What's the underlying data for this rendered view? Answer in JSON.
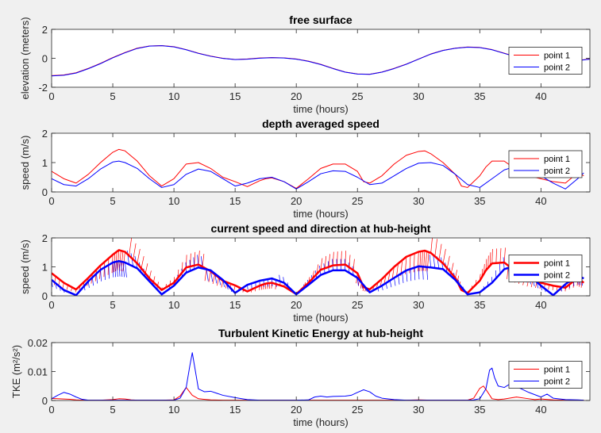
{
  "chart_data": [
    {
      "type": "line",
      "title": "free surface",
      "xlabel": "time (hours)",
      "ylabel": "elevation (meters)",
      "xlim": [
        0,
        44
      ],
      "ylim": [
        -2,
        2
      ],
      "xticks": [
        0,
        5,
        10,
        15,
        20,
        25,
        30,
        35,
        40
      ],
      "yticks": [
        -2,
        0,
        2
      ],
      "legend_position": "right",
      "series": [
        {
          "name": "point 1",
          "color": "#ff0000",
          "width": 1,
          "x": [
            0,
            1,
            2,
            3,
            4,
            5,
            6,
            7,
            8,
            9,
            10,
            11,
            12,
            13,
            14,
            15,
            16,
            17,
            18,
            19,
            20,
            21,
            22,
            23,
            24,
            25,
            26,
            27,
            28,
            29,
            30,
            31,
            32,
            33,
            34,
            35,
            36,
            37,
            38,
            39,
            40,
            41,
            42,
            43,
            44
          ],
          "y": [
            -1.2,
            -1.15,
            -1.0,
            -0.7,
            -0.35,
            0.05,
            0.4,
            0.7,
            0.85,
            0.88,
            0.8,
            0.6,
            0.35,
            0.15,
            0.0,
            -0.08,
            -0.05,
            0.02,
            0.05,
            0.03,
            -0.05,
            -0.2,
            -0.42,
            -0.7,
            -0.95,
            -1.08,
            -1.1,
            -0.95,
            -0.7,
            -0.4,
            -0.05,
            0.3,
            0.55,
            0.7,
            0.78,
            0.75,
            0.6,
            0.35,
            0.1,
            -0.1,
            -0.25,
            -0.3,
            -0.25,
            -0.15,
            -0.05
          ]
        },
        {
          "name": "point 2",
          "color": "#0000ff",
          "width": 1,
          "x": [
            0,
            1,
            2,
            3,
            4,
            5,
            6,
            7,
            8,
            9,
            10,
            11,
            12,
            13,
            14,
            15,
            16,
            17,
            18,
            19,
            20,
            21,
            22,
            23,
            24,
            25,
            26,
            27,
            28,
            29,
            30,
            31,
            32,
            33,
            34,
            35,
            36,
            37,
            38,
            39,
            40,
            41,
            42,
            43,
            44
          ],
          "y": [
            -1.22,
            -1.17,
            -1.02,
            -0.72,
            -0.37,
            0.03,
            0.38,
            0.68,
            0.84,
            0.87,
            0.79,
            0.59,
            0.34,
            0.14,
            -0.01,
            -0.09,
            -0.06,
            0.01,
            0.04,
            0.02,
            -0.06,
            -0.21,
            -0.43,
            -0.71,
            -0.96,
            -1.09,
            -1.11,
            -0.96,
            -0.71,
            -0.41,
            -0.06,
            0.29,
            0.54,
            0.69,
            0.77,
            0.74,
            0.59,
            0.34,
            0.09,
            -0.11,
            -0.26,
            -0.31,
            -0.26,
            -0.16,
            -0.06
          ]
        }
      ]
    },
    {
      "type": "line",
      "title": "depth averaged speed",
      "xlabel": "time (hours)",
      "ylabel": "speed (m/s)",
      "xlim": [
        0,
        44
      ],
      "ylim": [
        0,
        2
      ],
      "xticks": [
        0,
        5,
        10,
        15,
        20,
        25,
        30,
        35,
        40
      ],
      "yticks": [
        0,
        1,
        2
      ],
      "legend_position": "right",
      "series": [
        {
          "name": "point 1",
          "color": "#ff0000",
          "width": 1,
          "x": [
            0,
            1,
            2,
            3,
            4,
            5,
            5.5,
            6,
            7,
            8,
            9,
            10,
            11,
            12,
            13,
            14,
            15,
            16,
            17,
            17.5,
            18,
            19,
            20,
            21,
            22,
            23,
            24,
            25,
            25.5,
            26,
            27,
            28,
            29,
            30,
            30.5,
            31,
            32,
            33,
            33.5,
            34,
            35,
            35.5,
            36,
            37,
            38,
            39,
            40,
            41,
            42,
            43,
            43.5
          ],
          "y": [
            0.7,
            0.45,
            0.3,
            0.6,
            1.0,
            1.35,
            1.45,
            1.4,
            1.05,
            0.55,
            0.2,
            0.45,
            0.95,
            1.0,
            0.8,
            0.5,
            0.35,
            0.18,
            0.38,
            0.45,
            0.48,
            0.35,
            0.12,
            0.45,
            0.8,
            0.95,
            0.95,
            0.7,
            0.35,
            0.3,
            0.55,
            0.95,
            1.25,
            1.38,
            1.4,
            1.3,
            1.0,
            0.6,
            0.2,
            0.15,
            0.55,
            0.85,
            1.05,
            1.05,
            0.75,
            0.55,
            0.45,
            0.35,
            0.3,
            0.65,
            0.55
          ]
        },
        {
          "name": "point 2",
          "color": "#0000ff",
          "width": 1,
          "x": [
            0,
            1,
            2,
            3,
            4,
            5,
            5.5,
            6,
            7,
            8,
            9,
            10,
            11,
            12,
            13,
            14,
            15,
            16,
            17,
            18,
            19,
            20,
            21,
            22,
            23,
            24,
            25,
            26,
            27,
            28,
            29,
            30,
            31,
            32,
            33,
            34,
            35,
            36,
            37,
            38,
            39,
            40,
            41,
            42,
            43,
            43.5
          ],
          "y": [
            0.45,
            0.25,
            0.2,
            0.45,
            0.78,
            1.02,
            1.05,
            1.0,
            0.8,
            0.45,
            0.15,
            0.25,
            0.6,
            0.78,
            0.7,
            0.45,
            0.2,
            0.3,
            0.45,
            0.5,
            0.35,
            0.1,
            0.35,
            0.62,
            0.72,
            0.7,
            0.5,
            0.25,
            0.3,
            0.55,
            0.8,
            0.98,
            1.0,
            0.9,
            0.6,
            0.25,
            0.15,
            0.45,
            0.75,
            0.88,
            0.72,
            0.55,
            0.3,
            0.1,
            0.45,
            0.65
          ]
        }
      ]
    },
    {
      "type": "line",
      "title": "current speed and direction at hub-height",
      "xlabel": "time (hours)",
      "ylabel": "speed (m/s)",
      "xlim": [
        0,
        44
      ],
      "ylim": [
        0,
        2
      ],
      "xticks": [
        0,
        5,
        10,
        15,
        20,
        25,
        30,
        35,
        40
      ],
      "yticks": [
        0,
        1,
        2
      ],
      "legend_position": "right",
      "direction_arrows": true,
      "series": [
        {
          "name": "point 1",
          "color": "#ff0000",
          "width": 2.5,
          "x": [
            0,
            1,
            2,
            3,
            4,
            5,
            5.5,
            6,
            7,
            8,
            9,
            10,
            11,
            12,
            13,
            14,
            15,
            16,
            17,
            17.5,
            18,
            19,
            20,
            21,
            22,
            23,
            24,
            25,
            25.5,
            26,
            27,
            28,
            29,
            30,
            30.5,
            31,
            32,
            33,
            33.5,
            34,
            35,
            35.5,
            36,
            37,
            38,
            39,
            40,
            41,
            42,
            43,
            43.5
          ],
          "y": [
            0.78,
            0.45,
            0.22,
            0.62,
            1.05,
            1.42,
            1.58,
            1.52,
            1.12,
            0.6,
            0.2,
            0.45,
            0.98,
            1.08,
            0.85,
            0.52,
            0.36,
            0.15,
            0.35,
            0.42,
            0.45,
            0.32,
            0.06,
            0.45,
            0.9,
            1.05,
            1.08,
            0.78,
            0.3,
            0.22,
            0.58,
            1.0,
            1.35,
            1.52,
            1.56,
            1.48,
            1.12,
            0.62,
            0.2,
            0.1,
            0.52,
            0.88,
            1.12,
            1.15,
            0.82,
            0.58,
            0.45,
            0.35,
            0.28,
            0.62,
            0.45
          ]
        },
        {
          "name": "point 2",
          "color": "#0000ff",
          "width": 2.5,
          "x": [
            0,
            1,
            2,
            3,
            4,
            5,
            5.5,
            6,
            7,
            8,
            9,
            10,
            11,
            12,
            13,
            14,
            15,
            16,
            17,
            18,
            19,
            20,
            21,
            22,
            23,
            24,
            25,
            26,
            27,
            28,
            29,
            30,
            31,
            32,
            33,
            34,
            35,
            36,
            37,
            38,
            39,
            40,
            41,
            42,
            43,
            43.5
          ],
          "y": [
            0.55,
            0.2,
            0.02,
            0.5,
            0.9,
            1.15,
            1.2,
            1.15,
            0.95,
            0.5,
            0.05,
            0.35,
            0.8,
            0.98,
            0.88,
            0.55,
            0.1,
            0.38,
            0.52,
            0.6,
            0.45,
            0.05,
            0.38,
            0.72,
            0.88,
            0.88,
            0.62,
            0.12,
            0.35,
            0.62,
            0.88,
            1.02,
            0.98,
            0.92,
            0.55,
            0.05,
            0.12,
            0.45,
            0.92,
            1.05,
            0.72,
            0.35,
            0.02,
            0.4,
            0.7,
            0.6
          ]
        }
      ]
    },
    {
      "type": "line",
      "title": "Turbulent Kinetic Energy at hub-height",
      "xlabel": "time (hours)",
      "ylabel": "TKE (m²/s²)",
      "xlim": [
        0,
        44
      ],
      "ylim": [
        0,
        0.02
      ],
      "xticks": [
        0,
        5,
        10,
        15,
        20,
        25,
        30,
        35,
        40
      ],
      "yticks": [
        0,
        0.01,
        0.02
      ],
      "ytick_labels": [
        "0",
        "0.01",
        "0.02"
      ],
      "legend_position": "right",
      "series": [
        {
          "name": "point 1",
          "color": "#ff0000",
          "width": 1,
          "x": [
            0,
            0.5,
            1,
            1.5,
            2,
            3,
            4,
            5,
            5.5,
            6,
            6.5,
            7,
            8,
            9,
            10,
            10.5,
            11,
            11.5,
            12,
            13,
            14,
            15,
            16,
            17,
            18,
            19,
            20,
            21,
            22,
            23,
            24,
            25,
            26,
            27,
            28,
            29,
            30,
            31,
            32,
            33,
            34,
            34.5,
            35,
            35.3,
            35.6,
            36,
            36.5,
            37,
            38,
            39,
            39.5,
            40,
            41,
            42,
            43,
            43.5
          ],
          "y": [
            0.0007,
            0.0006,
            0.0005,
            0.0004,
            0.0002,
            0.0001,
            0.0001,
            0.0003,
            0.0006,
            0.0005,
            0.0002,
            0.0001,
            0.0001,
            0.0001,
            0.0002,
            0.0015,
            0.0045,
            0.0018,
            0.0006,
            0.0002,
            0.0001,
            0.0001,
            0.0001,
            0.0001,
            0.0001,
            0.0001,
            0.0001,
            0.0001,
            0.0001,
            0.0001,
            0.0001,
            0.0001,
            0.0001,
            0.0001,
            0.0001,
            0.0001,
            0.0002,
            0.0001,
            0.0001,
            0.0001,
            0.0001,
            0.0008,
            0.0042,
            0.005,
            0.0032,
            0.0006,
            0.0003,
            0.0005,
            0.0012,
            0.0006,
            0.0003,
            0.0005,
            0.0002,
            0.0001,
            0.0001,
            0.0001
          ]
        },
        {
          "name": "point 2",
          "color": "#0000ff",
          "width": 1,
          "x": [
            0,
            0.5,
            1,
            1.5,
            2,
            2.5,
            3,
            4,
            5,
            6,
            7,
            8,
            9,
            10,
            10.5,
            11,
            11.3,
            11.5,
            11.8,
            12,
            12.5,
            13,
            13.5,
            14,
            15,
            16,
            17,
            18,
            19,
            20,
            21,
            21.5,
            22,
            22.5,
            23,
            24,
            24.5,
            25,
            25.5,
            26,
            26.5,
            27,
            28,
            29,
            30,
            31,
            32,
            33,
            34,
            34.5,
            35,
            35.5,
            35.8,
            36,
            36.2,
            36.5,
            37,
            37.5,
            38,
            39,
            40,
            40.5,
            41,
            42,
            43,
            43.5
          ],
          "y": [
            0.0006,
            0.0018,
            0.0028,
            0.0022,
            0.0012,
            0.0004,
            0.0001,
            0.0001,
            0.0001,
            0.0001,
            0.0001,
            0.0001,
            0.0001,
            0.0001,
            0.0008,
            0.0045,
            0.012,
            0.0165,
            0.009,
            0.004,
            0.003,
            0.0032,
            0.0025,
            0.0018,
            0.001,
            0.0003,
            0.0001,
            0.0001,
            0.0001,
            0.0001,
            0.0002,
            0.0012,
            0.0015,
            0.0012,
            0.0014,
            0.0015,
            0.0018,
            0.0028,
            0.0037,
            0.003,
            0.0015,
            0.0008,
            0.0003,
            0.0001,
            0.0001,
            0.0001,
            0.0001,
            0.0001,
            0.0001,
            0.0002,
            0.0006,
            0.004,
            0.0105,
            0.0112,
            0.008,
            0.005,
            0.0045,
            0.0058,
            0.0048,
            0.0028,
            0.0012,
            0.0022,
            0.0008,
            0.0003,
            0.0002,
            0.0001
          ]
        }
      ]
    }
  ]
}
